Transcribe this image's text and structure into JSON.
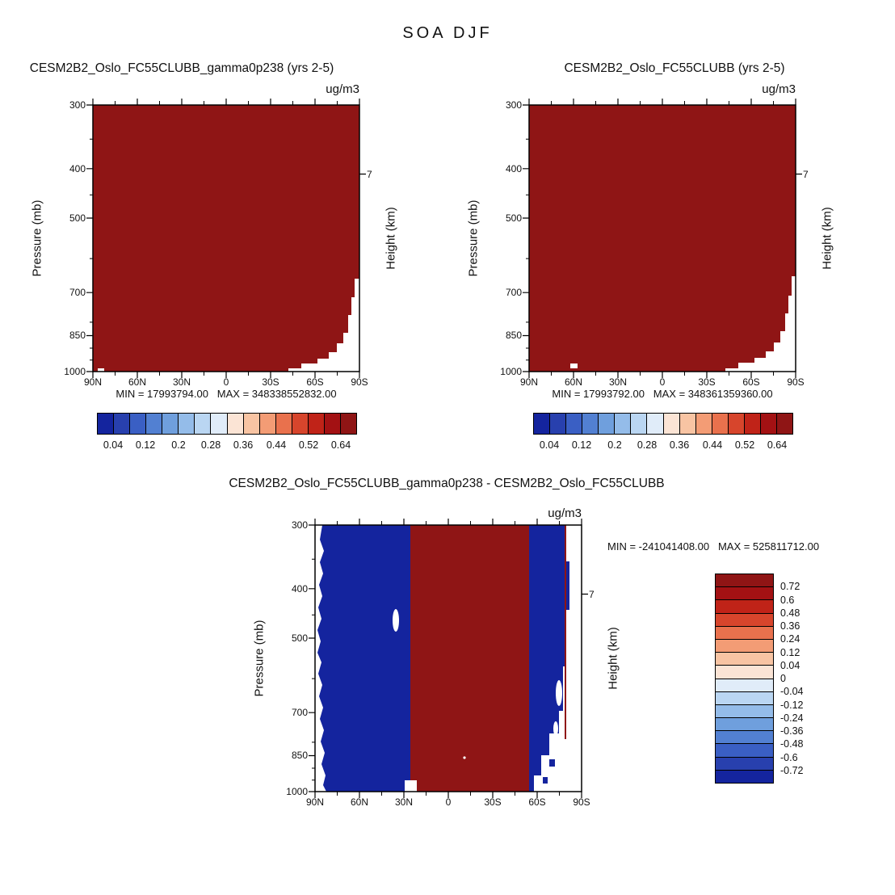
{
  "main_title": "SOA DJF",
  "colors": {
    "dark_red": "#8f1515",
    "dark_blue": "#14249e",
    "frame": "#000000"
  },
  "axes": {
    "x_ticks": [
      "90N",
      "60N",
      "30N",
      "0",
      "30S",
      "60S",
      "90S"
    ],
    "y_ticks": [
      "300",
      "400",
      "500",
      "700",
      "850",
      "1000"
    ],
    "pressure_label": "Pressure (mb)",
    "height_label": "Height (km)",
    "height_tick": "7",
    "units": "ug/m3"
  },
  "panel1": {
    "title": "CESM2B2_Oslo_FC55CLUBB_gamma0p238 (yrs 2-5)",
    "minmax": "MIN = 17993794.00   MAX = 348338552832.00"
  },
  "panel2": {
    "title": "CESM2B2_Oslo_FC55CLUBB (yrs 2-5)",
    "minmax": "MIN = 17993792.00   MAX = 348361359360.00"
  },
  "panel3": {
    "title": "CESM2B2_Oslo_FC55CLUBB_gamma0p238 - CESM2B2_Oslo_FC55CLUBB",
    "minmax": "MIN = -241041408.00   MAX = 525811712.00"
  },
  "colorbar_top": {
    "labels": [
      "0.04",
      "0.12",
      "0.2",
      "0.28",
      "0.36",
      "0.44",
      "0.52",
      "0.64"
    ],
    "colors": [
      "#14249e",
      "#2840ae",
      "#3a5fc4",
      "#5280d2",
      "#6f9fdd",
      "#94bce9",
      "#bad6f2",
      "#e0ecf9",
      "#fbe4d5",
      "#f8c4a3",
      "#f39c75",
      "#e9714d",
      "#d7452c",
      "#c02318",
      "#a31113",
      "#8f1515"
    ]
  },
  "colorbar_diff": {
    "labels": [
      "0.72",
      "0.6",
      "0.48",
      "0.36",
      "0.24",
      "0.12",
      "0.04",
      "0",
      "-0.04",
      "-0.12",
      "-0.24",
      "-0.36",
      "-0.48",
      "-0.6",
      "-0.72"
    ],
    "colors": [
      "#8f1515",
      "#a31113",
      "#c02318",
      "#d7452c",
      "#e9714d",
      "#f39c75",
      "#f8c4a3",
      "#fbe4d5",
      "#e0ecf9",
      "#bad6f2",
      "#94bce9",
      "#6f9fdd",
      "#5280d2",
      "#3a5fc4",
      "#2840ae",
      "#14249e"
    ]
  },
  "chart_data": [
    {
      "type": "heatmap",
      "panel": "top-left",
      "title": "CESM2B2_Oslo_FC55CLUBB_gamma0p238 (yrs 2-5)",
      "variable": "SOA",
      "season": "DJF",
      "units": "ug/m3",
      "x_ticks": [
        "90N",
        "60N",
        "30N",
        "0",
        "30S",
        "60S",
        "90S"
      ],
      "ylabel": "Pressure (mb)",
      "y_ticks": [
        300,
        400,
        500,
        700,
        850,
        1000
      ],
      "y_scale": "log",
      "right_axis_label": "Height (km)",
      "right_axis_ticks": [
        7
      ],
      "min": 17993794.0,
      "max": 348338552832.0,
      "levels_labeled": [
        0.04,
        0.12,
        0.2,
        0.28,
        0.36,
        0.44,
        0.52,
        0.64
      ],
      "colorbar": "blue-to-red, 16 cells, horizontal",
      "pattern": "entire latitude-pressure section saturated at the highest contour color (dark red); white terrain mask stair-steps upward near 90S below ~350 mb and a tiny white notch near 90N at the surface"
    },
    {
      "type": "heatmap",
      "panel": "top-right",
      "title": "CESM2B2_Oslo_FC55CLUBB (yrs 2-5)",
      "variable": "SOA",
      "season": "DJF",
      "units": "ug/m3",
      "x_ticks": [
        "90N",
        "60N",
        "30N",
        "0",
        "30S",
        "60S",
        "90S"
      ],
      "ylabel": "Pressure (mb)",
      "y_ticks": [
        300,
        400,
        500,
        700,
        850,
        1000
      ],
      "y_scale": "log",
      "right_axis_label": "Height (km)",
      "right_axis_ticks": [
        7
      ],
      "min": 17993792.0,
      "max": 348361359360.0,
      "levels_labeled": [
        0.04,
        0.12,
        0.2,
        0.28,
        0.36,
        0.44,
        0.52,
        0.64
      ],
      "colorbar": "blue-to-red, 16 cells, horizontal",
      "pattern": "entire section saturated dark red; white terrain stair-steps near 90S at low levels; small white gap near 60N at the surface"
    },
    {
      "type": "heatmap",
      "panel": "bottom-difference",
      "title": "CESM2B2_Oslo_FC55CLUBB_gamma0p238 - CESM2B2_Oslo_FC55CLUBB",
      "variable": "SOA difference",
      "season": "DJF",
      "units": "ug/m3",
      "x_ticks": [
        "90N",
        "60N",
        "30N",
        "0",
        "30S",
        "60S",
        "90S"
      ],
      "ylabel": "Pressure (mb)",
      "y_ticks": [
        300,
        400,
        500,
        700,
        850,
        1000
      ],
      "y_scale": "log",
      "right_axis_label": "Height (km)",
      "right_axis_ticks": [
        7
      ],
      "min": -241041408.0,
      "max": 525811712.0,
      "levels_labeled": [
        0.72,
        0.6,
        0.48,
        0.36,
        0.24,
        0.12,
        0.04,
        0,
        -0.04,
        -0.12,
        -0.24,
        -0.36,
        -0.48,
        -0.6,
        -0.72
      ],
      "colorbar": "red-to-blue, 16 cells, vertical, right of panel",
      "pattern": "strong positive band (dark red, above top level) roughly 25N to 55S at all heights; strong negative (dark blue, below bottom level) poleward of the band on both sides; thin white margin along 90N edge, white blobs near 500 mb at ~25N and near 700-850 mb at ~70S, and white terrain area near 90S surface"
    }
  ]
}
